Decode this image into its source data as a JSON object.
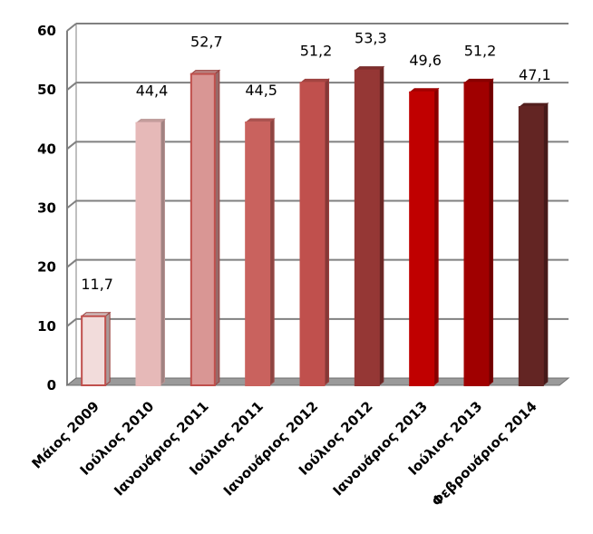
{
  "chart_data": {
    "type": "bar",
    "categories": [
      "Μάιος 2009",
      "Ιούλιος 2010",
      "Ιανουάριος 2011",
      "Ιούλιος 2011",
      "Ιανουάριος 2012",
      "Ιούλιος 2012",
      "Ιανουάριος 2013",
      "Ιούλιος 2013",
      "Φεβρουάριος 2014"
    ],
    "values": [
      11.7,
      44.4,
      52.7,
      44.5,
      51.2,
      53.3,
      49.6,
      51.2,
      47.1
    ],
    "value_labels": [
      "11,7",
      "44,4",
      "52,7",
      "44,5",
      "51,2",
      "53,3",
      "49,6",
      "51,2",
      "47,1"
    ],
    "y_ticks": [
      "0",
      "10",
      "20",
      "30",
      "40",
      "50",
      "60"
    ],
    "ylim": [
      0,
      60
    ],
    "grid": true,
    "legend": "none",
    "colors": [
      "#f2dcdb",
      "#e6b9b8",
      "#d99694",
      "#c9625e",
      "#c0504d",
      "#953735",
      "#c00000",
      "#a00000",
      "#632523"
    ],
    "edge_colors": [
      "#c0504d",
      "#e6b9b8",
      "#c0504d",
      "#c9625e",
      "#c0504d",
      "#953735",
      "#c00000",
      "#a00000",
      "#632523"
    ]
  }
}
